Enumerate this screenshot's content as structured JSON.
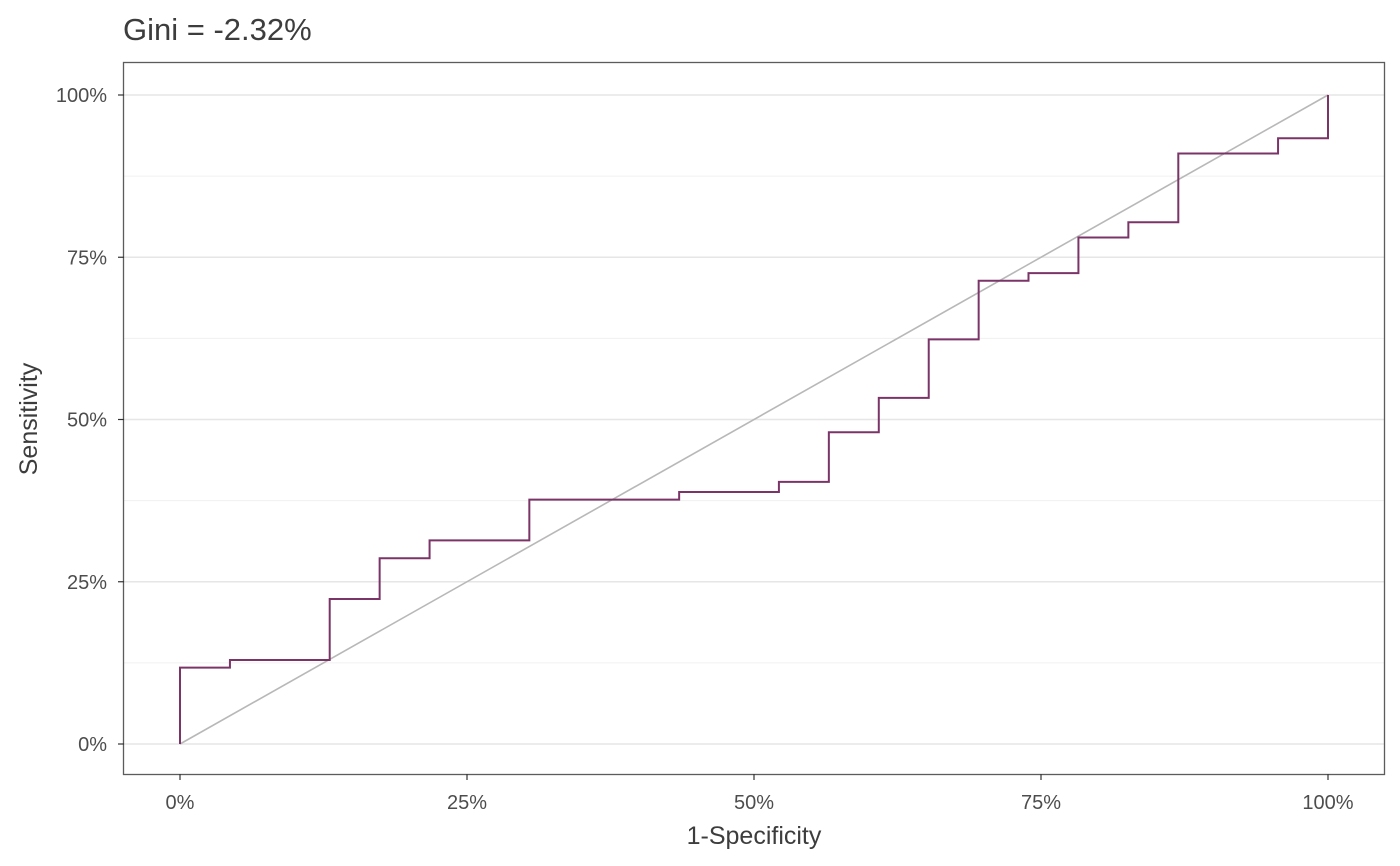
{
  "chart_data": {
    "type": "line",
    "title": "Gini = -2.32%",
    "xlabel": "1-Specificity",
    "ylabel": "Sensitivity",
    "xlim": [
      0,
      1
    ],
    "ylim": [
      0,
      1
    ],
    "x_ticks": [
      0,
      0.25,
      0.5,
      0.75,
      1
    ],
    "x_tick_labels": [
      "0%",
      "25%",
      "50%",
      "75%",
      "100%"
    ],
    "y_ticks": [
      0,
      0.25,
      0.5,
      0.75,
      1
    ],
    "y_tick_labels": [
      "0%",
      "25%",
      "50%",
      "75%",
      "100%"
    ],
    "grid": true,
    "legend": "none",
    "series": [
      {
        "style": "step",
        "color": "#7b3468",
        "x": [
          0,
          0,
          0.0435,
          0.0435,
          0.1304,
          0.1304,
          0.1739,
          0.1739,
          0.2174,
          0.2174,
          0.3043,
          0.3043,
          0.4348,
          0.4348,
          0.5217,
          0.5217,
          0.5652,
          0.5652,
          0.6087,
          0.6087,
          0.6522,
          0.6522,
          0.6957,
          0.6957,
          0.7391,
          0.7391,
          0.7826,
          0.7826,
          0.8261,
          0.8261,
          0.8696,
          0.8696,
          0.9565,
          0.9565,
          1,
          1
        ],
        "y": [
          0,
          0.1176,
          0.1176,
          0.1294,
          0.1294,
          0.2235,
          0.2235,
          0.2863,
          0.2863,
          0.3137,
          0.3137,
          0.3765,
          0.3765,
          0.3882,
          0.3882,
          0.4039,
          0.4039,
          0.4804,
          0.4804,
          0.5333,
          0.5333,
          0.6235,
          0.6235,
          0.7137,
          0.7137,
          0.7255,
          0.7255,
          0.7804,
          0.7804,
          0.8039,
          0.8039,
          0.9098,
          0.9098,
          0.9333,
          0.9333,
          1
        ]
      },
      {
        "style": "line",
        "color": "#b8b8b8",
        "x": [
          0,
          1
        ],
        "y": [
          0,
          1
        ]
      }
    ]
  }
}
